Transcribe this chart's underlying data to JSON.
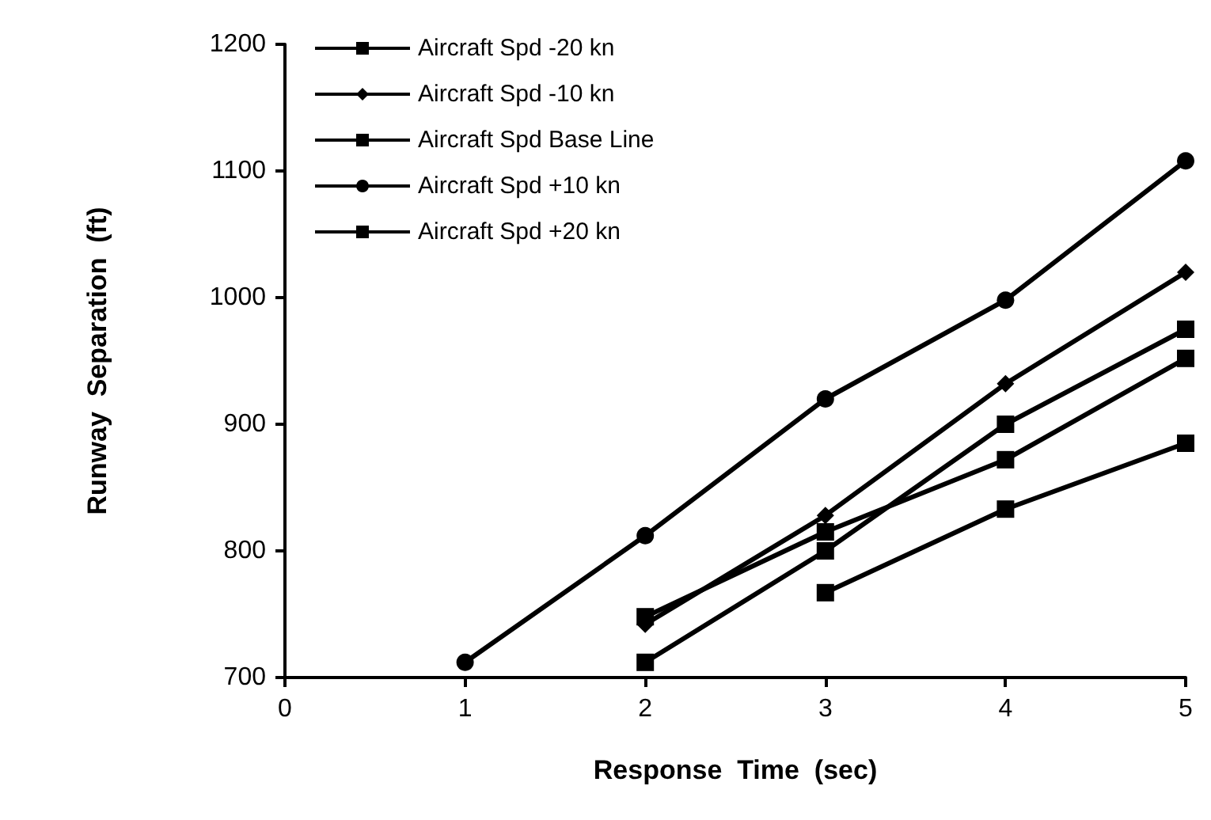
{
  "chart_data": {
    "type": "line",
    "xlabel": "Response  Time  (sec)",
    "ylabel": "Runway  Separation  (ft)",
    "xlim": [
      0,
      5
    ],
    "xticks": [
      0,
      1,
      2,
      3,
      4,
      5
    ],
    "ylim": [
      700,
      1200
    ],
    "yticks": [
      700,
      800,
      900,
      1000,
      1100,
      1200
    ],
    "grid": false,
    "legend": "top left",
    "line_style": "solid",
    "series": [
      {
        "name": "Aircraft Spd -20 kn",
        "color": "#000000",
        "marker": "square",
        "x": [
          3,
          4,
          5
        ],
        "values": [
          767,
          833,
          885
        ]
      },
      {
        "name": "Aircraft Spd -10 kn",
        "color": "#000000",
        "marker": "diamond",
        "x": [
          2,
          3,
          4,
          5
        ],
        "values": [
          742,
          828,
          932,
          1020
        ]
      },
      {
        "name": "Aircraft Spd Base Line",
        "color": "#000000",
        "marker": "square",
        "x": [
          2,
          3,
          4,
          5
        ],
        "values": [
          712,
          800,
          900,
          975
        ]
      },
      {
        "name": "Aircraft Spd +10 kn",
        "color": "#000000",
        "marker": "circle",
        "x": [
          1,
          2,
          3,
          4,
          5
        ],
        "values": [
          712,
          812,
          920,
          998,
          1108
        ]
      },
      {
        "name": "Aircraft Spd +20 kn",
        "color": "#000000",
        "marker": "square",
        "x": [
          2,
          3,
          4,
          5
        ],
        "values": [
          748,
          815,
          872,
          952
        ]
      }
    ]
  }
}
